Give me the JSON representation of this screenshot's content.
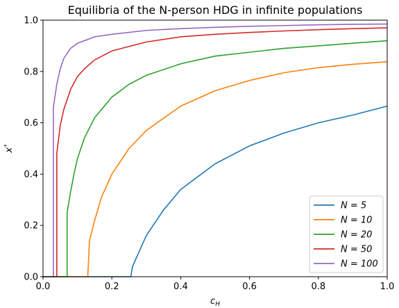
{
  "chart_data": {
    "type": "line",
    "title": "Equilibria of the N-person HDG in infinite populations",
    "xlabel": "c",
    "xlabel_sub": "H",
    "ylabel": "x",
    "ylabel_sup": "*",
    "xlim": [
      0.0,
      1.0
    ],
    "ylim": [
      0.0,
      1.0
    ],
    "xticks": [
      "0.0",
      "0.2",
      "0.4",
      "0.6",
      "0.8",
      "1.0"
    ],
    "yticks": [
      "0.0",
      "0.2",
      "0.4",
      "0.6",
      "0.8",
      "1.0"
    ],
    "grid": false,
    "legend_position": "lower-right",
    "series": [
      {
        "name": "N = 5",
        "color": "#1f77b4",
        "x": [
          0.0,
          0.255,
          0.26,
          0.28,
          0.3,
          0.35,
          0.4,
          0.5,
          0.6,
          0.7,
          0.8,
          0.9,
          1.0
        ],
        "y": [
          0.0,
          0.0,
          0.04,
          0.1,
          0.16,
          0.26,
          0.34,
          0.44,
          0.51,
          0.56,
          0.6,
          0.63,
          0.665
        ]
      },
      {
        "name": "N = 10",
        "color": "#ff7f0e",
        "x": [
          0.0,
          0.13,
          0.135,
          0.15,
          0.17,
          0.2,
          0.25,
          0.3,
          0.4,
          0.5,
          0.6,
          0.7,
          0.8,
          0.9,
          1.0
        ],
        "y": [
          0.0,
          0.0,
          0.14,
          0.22,
          0.31,
          0.4,
          0.5,
          0.57,
          0.665,
          0.725,
          0.765,
          0.795,
          0.815,
          0.828,
          0.838
        ]
      },
      {
        "name": "N = 20",
        "color": "#2ca02c",
        "x": [
          0.0,
          0.07,
          0.07,
          0.08,
          0.09,
          0.1,
          0.12,
          0.15,
          0.2,
          0.25,
          0.3,
          0.4,
          0.5,
          0.6,
          0.7,
          0.8,
          0.9,
          1.0
        ],
        "y": [
          0.0,
          0.0,
          0.25,
          0.33,
          0.4,
          0.46,
          0.54,
          0.62,
          0.7,
          0.75,
          0.785,
          0.83,
          0.86,
          0.875,
          0.89,
          0.9,
          0.91,
          0.92
        ]
      },
      {
        "name": "N = 50",
        "color": "#d62728",
        "x": [
          0.0,
          0.04,
          0.04,
          0.05,
          0.06,
          0.08,
          0.1,
          0.12,
          0.15,
          0.2,
          0.3,
          0.4,
          0.5,
          0.6,
          0.7,
          0.8,
          0.9,
          1.0
        ],
        "y": [
          0.0,
          0.0,
          0.48,
          0.59,
          0.65,
          0.73,
          0.78,
          0.81,
          0.845,
          0.88,
          0.915,
          0.935,
          0.945,
          0.952,
          0.958,
          0.963,
          0.967,
          0.97
        ]
      },
      {
        "name": "N = 100",
        "color": "#9467bd",
        "x": [
          0.0,
          0.03,
          0.03,
          0.04,
          0.05,
          0.06,
          0.08,
          0.1,
          0.15,
          0.2,
          0.3,
          0.4,
          0.5,
          0.6,
          0.7,
          0.8,
          0.9,
          1.0
        ],
        "y": [
          0.0,
          0.0,
          0.66,
          0.75,
          0.81,
          0.85,
          0.89,
          0.91,
          0.935,
          0.945,
          0.96,
          0.967,
          0.972,
          0.976,
          0.979,
          0.982,
          0.984,
          0.985
        ]
      }
    ]
  }
}
